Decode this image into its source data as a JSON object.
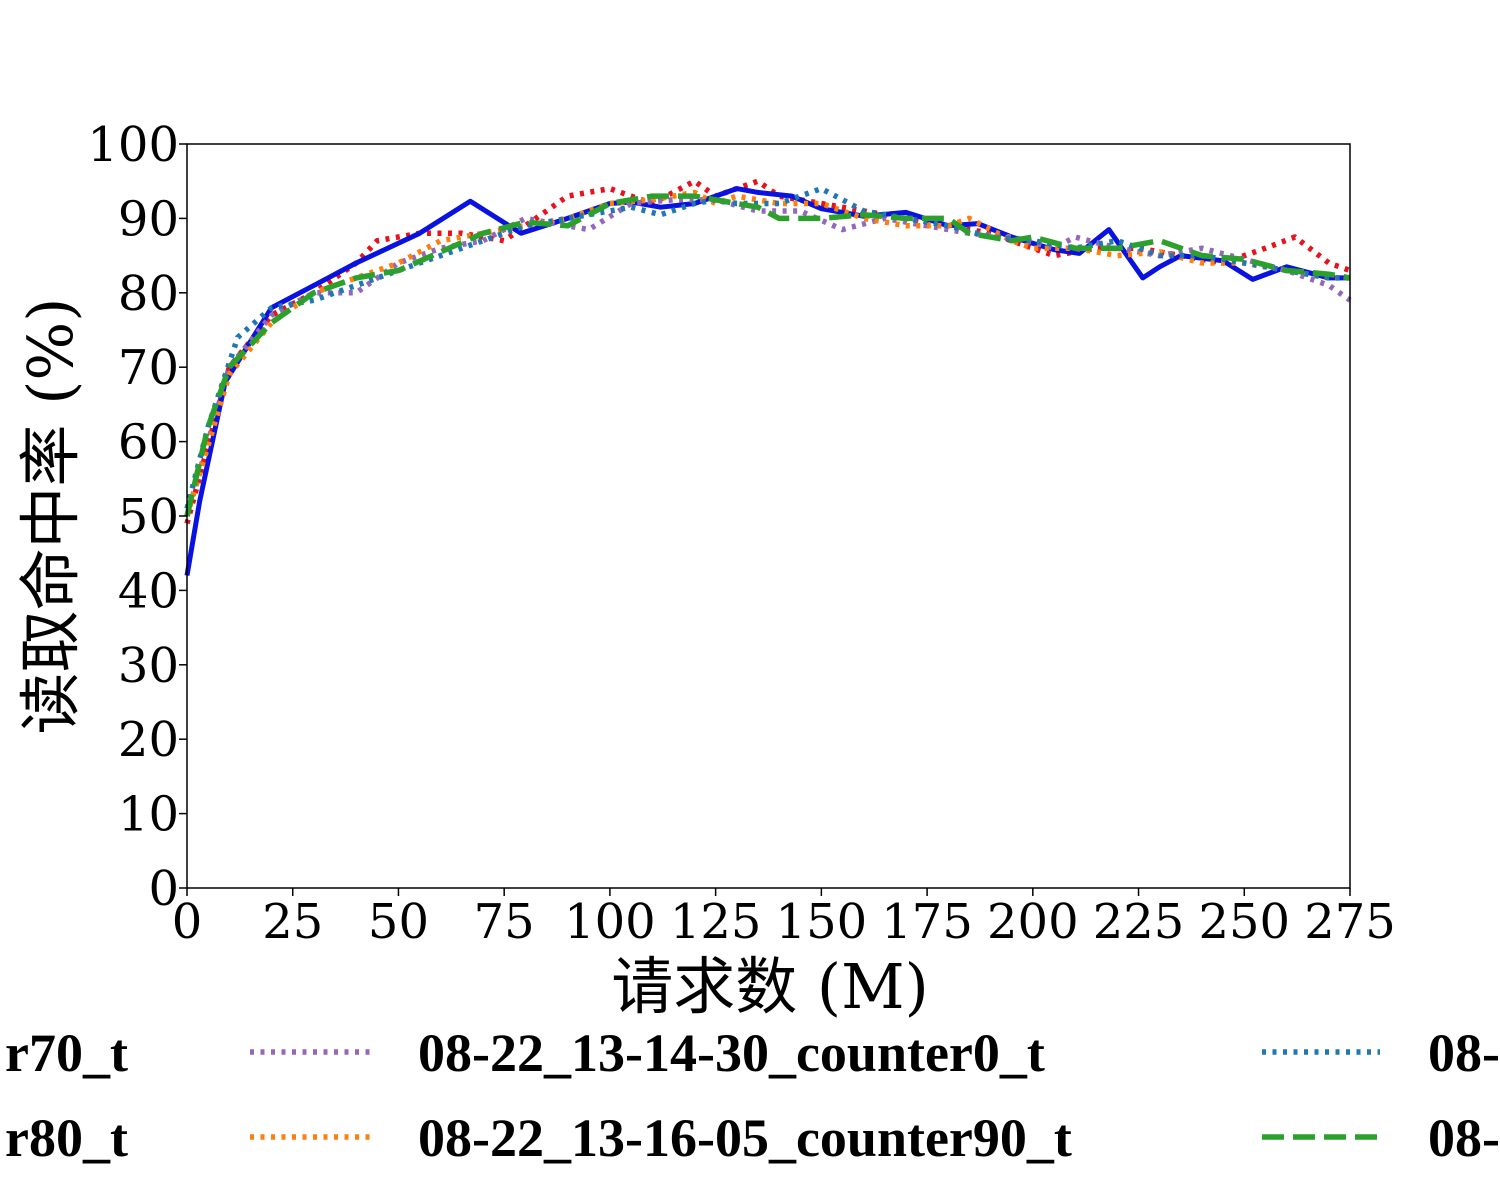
{
  "chart_data": {
    "type": "line",
    "title": "",
    "xlabel": "请求数 (M)",
    "ylabel": "读取命中率 (%)",
    "xlim": [
      0,
      275
    ],
    "ylim": [
      0,
      100
    ],
    "xticks": [
      0,
      25,
      50,
      75,
      100,
      125,
      150,
      175,
      200,
      225,
      250,
      275
    ],
    "yticks": [
      0,
      10,
      20,
      30,
      40,
      50,
      60,
      70,
      80,
      90,
      100
    ],
    "grid": false,
    "legend": {
      "placement": "bottom, three columns, cropped at left and right edges",
      "entries": [
        {
          "label": "r70_t",
          "series": "red-dotted",
          "column": 0,
          "row": 0
        },
        {
          "label": "r80_t",
          "series": "blue-solid",
          "column": 0,
          "row": 1
        },
        {
          "label": "08-22_13-14-30_counter0_t",
          "series": "purple-dotted",
          "column": 1,
          "row": 0
        },
        {
          "label": "08-22_13-16-05_counter90_t",
          "series": "orange-dotted",
          "column": 1,
          "row": 1
        },
        {
          "label": "08-",
          "series": "teal-dotted",
          "column": 2,
          "row": 0
        },
        {
          "label": "08-",
          "series": "green-dashed",
          "column": 2,
          "row": 1
        }
      ]
    },
    "series": [
      {
        "id": "red-dotted",
        "color": "#e8121c",
        "style": "dotted",
        "x": [
          0,
          10,
          20,
          30,
          40,
          45,
          55,
          65,
          75,
          80,
          90,
          100,
          110,
          120,
          125,
          130,
          135,
          140,
          150,
          160,
          170,
          180,
          190,
          200,
          205,
          215,
          225,
          235,
          245,
          250,
          255,
          262,
          270,
          275
        ],
        "y": [
          49,
          70,
          77,
          80,
          84,
          87,
          88,
          88,
          87,
          89,
          93,
          94,
          92,
          95,
          93,
          94,
          95,
          93,
          92,
          91,
          90,
          89,
          88,
          86,
          85,
          86,
          86,
          85,
          84,
          85,
          86,
          87.5,
          84,
          83
        ]
      },
      {
        "id": "blue-solid",
        "color": "#0a12e0",
        "style": "solid",
        "x": [
          0,
          3,
          9,
          20,
          30,
          40,
          55,
          67,
          79,
          90,
          100,
          105,
          112,
          120,
          125,
          130,
          135,
          143,
          150,
          160,
          170,
          180,
          187,
          195,
          205,
          211,
          218,
          226,
          230,
          235,
          245,
          252,
          260,
          270,
          275
        ],
        "y": [
          42,
          52,
          68,
          78,
          81,
          84,
          88,
          92.3,
          88,
          90,
          92,
          92.2,
          91.5,
          92,
          93,
          94,
          93.5,
          93,
          91.3,
          90.3,
          90.8,
          89,
          89.3,
          87.5,
          85.8,
          85.3,
          88.5,
          82,
          83.5,
          85,
          84.3,
          81.8,
          83.5,
          82,
          82
        ]
      },
      {
        "id": "purple-dotted",
        "color": "#9467bd",
        "style": "dotted",
        "x": [
          0,
          10,
          20,
          30,
          40,
          50,
          60,
          70,
          80,
          90,
          95,
          105,
          115,
          125,
          135,
          145,
          155,
          165,
          175,
          185,
          195,
          205,
          210,
          220,
          230,
          240,
          250,
          260,
          270,
          275
        ],
        "y": [
          50,
          70,
          77,
          80,
          80,
          84,
          86,
          87,
          90,
          89,
          88.5,
          92,
          92.5,
          92.5,
          91,
          91,
          88.5,
          90,
          89,
          88,
          87.5,
          86,
          87.5,
          86,
          85,
          86,
          84.5,
          83,
          81,
          79
        ]
      },
      {
        "id": "orange-dotted",
        "color": "#ff7f0e",
        "style": "dotted",
        "x": [
          0,
          10,
          20,
          30,
          40,
          50,
          60,
          70,
          80,
          90,
          100,
          110,
          120,
          125,
          130,
          140,
          150,
          160,
          170,
          180,
          185,
          195,
          200,
          210,
          220,
          230,
          240,
          250,
          260,
          270,
          275
        ],
        "y": [
          50,
          69,
          76,
          80,
          82,
          84,
          87,
          88,
          89,
          90,
          92,
          92.5,
          93.5,
          92,
          93,
          92,
          92,
          90,
          89,
          89,
          90,
          87,
          86,
          86,
          85,
          85.5,
          84,
          84,
          83,
          82,
          82
        ]
      },
      {
        "id": "teal-dotted",
        "color": "#1f77b4",
        "style": "dotted",
        "x": [
          0,
          5,
          12,
          20,
          30,
          40,
          50,
          60,
          70,
          80,
          90,
          100,
          105,
          112,
          120,
          125,
          130,
          140,
          150,
          160,
          170,
          180,
          190,
          200,
          210,
          220,
          230,
          240,
          250,
          260,
          270,
          275
        ],
        "y": [
          51,
          62,
          74,
          78,
          79,
          81,
          83,
          85,
          87,
          89,
          90,
          91,
          91.5,
          90.5,
          92,
          92.5,
          92,
          92,
          94,
          91,
          90,
          89,
          87.5,
          87,
          86,
          87,
          85,
          85,
          84,
          83,
          82,
          82
        ]
      },
      {
        "id": "green-dashed",
        "color": "#2ca02c",
        "style": "dashed",
        "x": [
          0,
          5,
          10,
          20,
          30,
          40,
          50,
          60,
          70,
          80,
          90,
          100,
          110,
          120,
          125,
          135,
          140,
          150,
          160,
          170,
          180,
          185,
          195,
          200,
          210,
          220,
          230,
          240,
          250,
          260,
          270,
          275
        ],
        "y": [
          50,
          62,
          70,
          76,
          80,
          82,
          83,
          85.5,
          88,
          89.5,
          89,
          92,
          93,
          93,
          92.5,
          91.5,
          90,
          90,
          90.5,
          90,
          90,
          88,
          87,
          87.5,
          86,
          86,
          87,
          85,
          84.5,
          83,
          82.5,
          82
        ]
      }
    ]
  }
}
